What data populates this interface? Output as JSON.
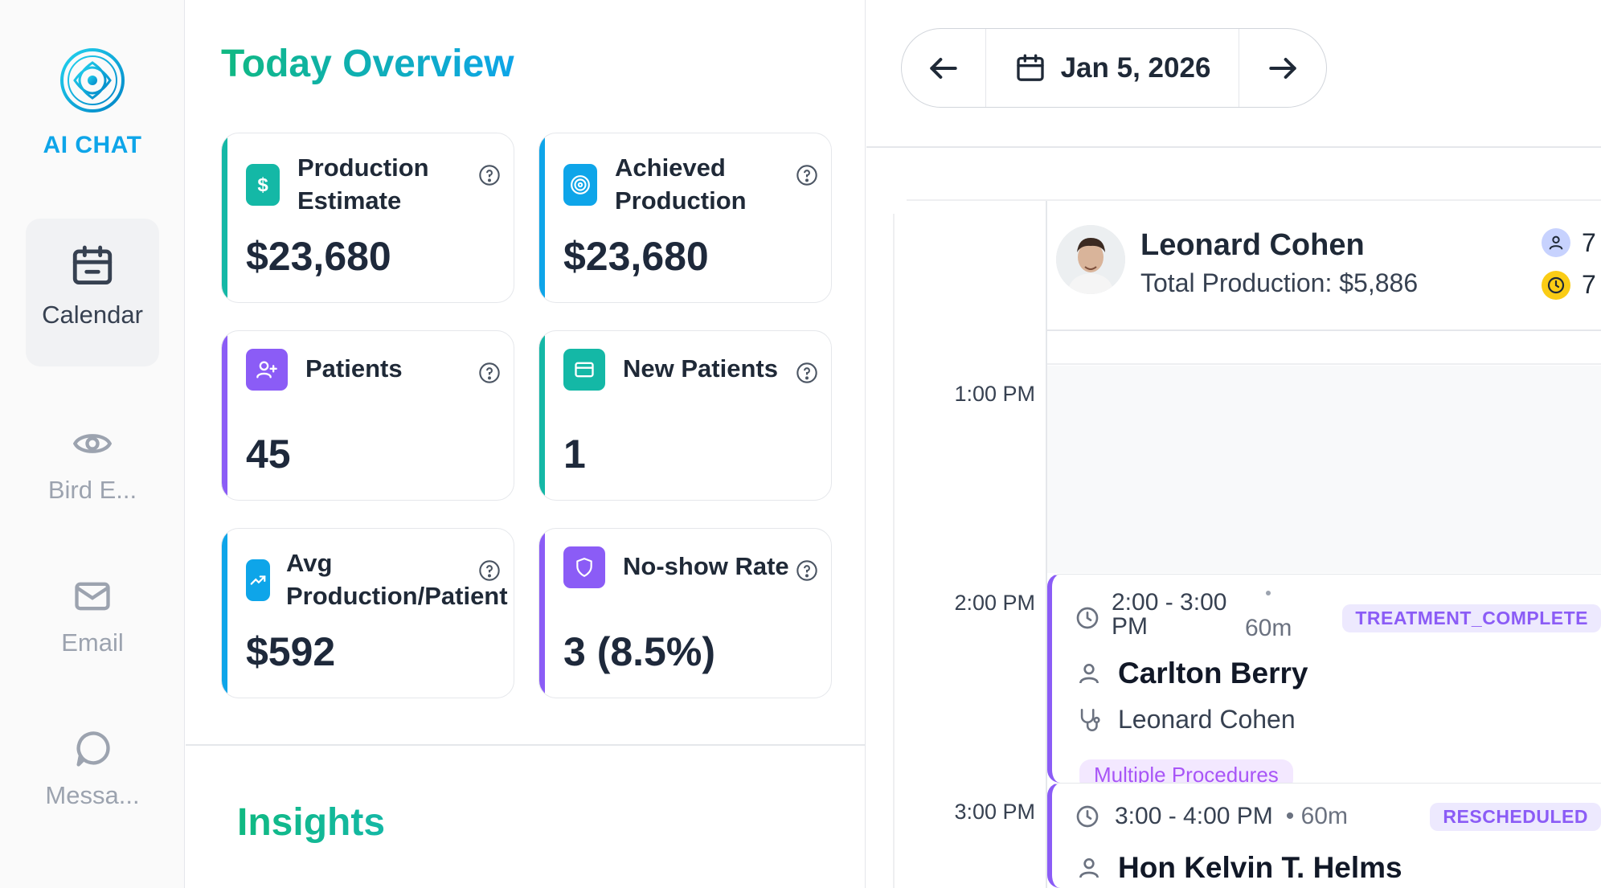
{
  "sidebar": {
    "brand": "AI CHAT",
    "items": [
      {
        "label": "Calendar",
        "icon": "calendar-icon",
        "active": true
      },
      {
        "label": "Bird E...",
        "icon": "eye-icon",
        "active": false
      },
      {
        "label": "Email",
        "icon": "mail-icon",
        "active": false
      },
      {
        "label": "Messa...",
        "icon": "message-icon",
        "active": false
      }
    ]
  },
  "overview": {
    "title": "Today Overview",
    "cards": [
      {
        "title": "Production Estimate",
        "value": "$23,680",
        "accent": "#14b8a6",
        "icon": "dollar-icon",
        "icon_bg": "#14b8a6"
      },
      {
        "title": "Achieved Production",
        "value": "$23,680",
        "accent": "#0ea5e9",
        "icon": "target-icon",
        "icon_bg": "#0ea5e9"
      },
      {
        "title": "Patients",
        "value": "45",
        "accent": "#8b5cf6",
        "icon": "user-plus-icon",
        "icon_bg": "#8b5cf6"
      },
      {
        "title": "New Patients",
        "value": "1",
        "accent": "#14b8a6",
        "icon": "card-icon",
        "icon_bg": "#14b8a6"
      },
      {
        "title": "Avg Production/Patient",
        "value": "$592",
        "accent": "#0ea5e9",
        "icon": "trend-icon",
        "icon_bg": "#0ea5e9"
      },
      {
        "title": "No-show Rate",
        "value": "3 (8.5%)",
        "accent": "#8b5cf6",
        "icon": "shield-icon",
        "icon_bg": "#8b5cf6"
      }
    ]
  },
  "insights": {
    "title": "Insights"
  },
  "calendar": {
    "date": "Jan 5, 2026",
    "provider": {
      "name": "Leonard Cohen",
      "production": "Total Production: $5,886",
      "patients_count": "7",
      "hours_count": "7"
    },
    "time_labels": [
      "1:00 PM",
      "2:00 PM",
      "3:00 PM"
    ],
    "appointments": [
      {
        "time_line1": "2:00 - 3:00",
        "time_line2": "PM",
        "duration": "60m",
        "status": "TREATMENT_COMPLETE",
        "patient": "Carlton Berry",
        "doctor": "Leonard Cohen",
        "procedure": "Multiple Procedures"
      },
      {
        "time": "3:00 - 4:00 PM",
        "duration": "• 60m",
        "status": "RESCHEDULED",
        "patient": "Hon Kelvin T. Helms"
      }
    ]
  },
  "colors": {
    "teal": "#14b8a6",
    "sky": "#0ea5e9",
    "violet": "#8b5cf6",
    "amber": "#facc15"
  }
}
